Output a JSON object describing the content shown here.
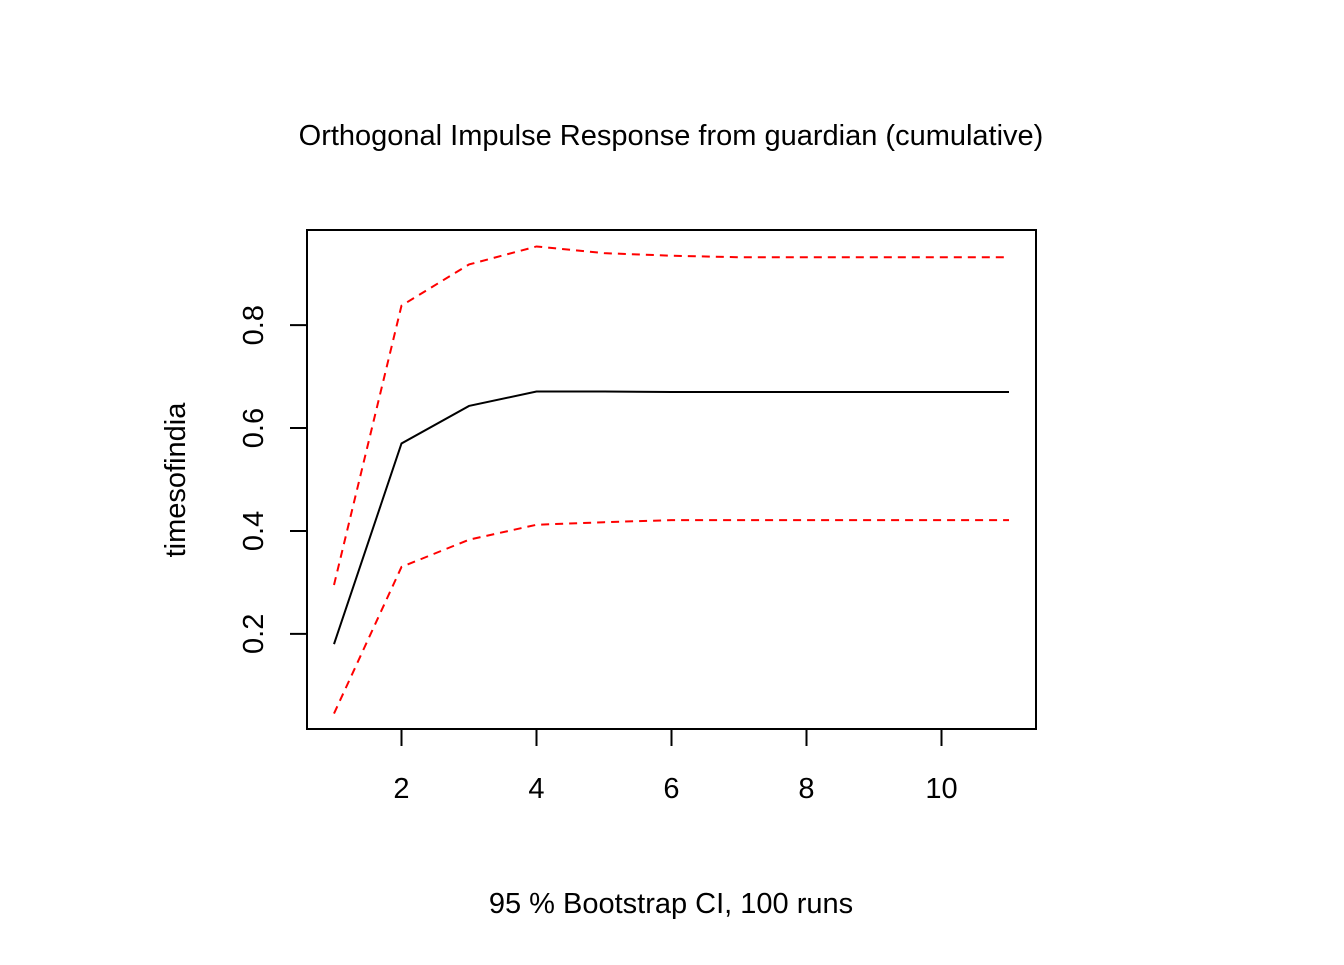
{
  "chart_data": {
    "type": "line",
    "title": "Orthogonal Impulse Response from guardian (cumulative)",
    "xlabel": "95 % Bootstrap CI,  100 runs",
    "ylabel": "timesofindia",
    "x": [
      1,
      2,
      3,
      4,
      5,
      6,
      7,
      8,
      9,
      10,
      11
    ],
    "xlim": [
      0.6,
      11.4
    ],
    "ylim": [
      0.015,
      0.985
    ],
    "x_ticks": [
      2,
      4,
      6,
      8,
      10
    ],
    "x_tick_labels": [
      "2",
      "4",
      "6",
      "8",
      "10"
    ],
    "y_ticks": [
      0.2,
      0.4,
      0.6,
      0.8
    ],
    "y_tick_labels": [
      "0.2",
      "0.4",
      "0.6",
      "0.8"
    ],
    "grid": false,
    "legend": "none",
    "series": [
      {
        "role": "response",
        "color": "#000000",
        "line_style": "solid",
        "values": [
          0.18,
          0.57,
          0.643,
          0.671,
          0.671,
          0.67,
          0.67,
          0.67,
          0.67,
          0.67,
          0.67
        ]
      },
      {
        "role": "upper-ci",
        "color": "#ff0000",
        "line_style": "dashed",
        "values": [
          0.295,
          0.838,
          0.918,
          0.953,
          0.94,
          0.935,
          0.932,
          0.932,
          0.932,
          0.932,
          0.932
        ]
      },
      {
        "role": "lower-ci",
        "color": "#ff0000",
        "line_style": "dashed",
        "values": [
          0.045,
          0.33,
          0.383,
          0.412,
          0.417,
          0.421,
          0.421,
          0.421,
          0.421,
          0.421,
          0.421
        ]
      }
    ]
  }
}
